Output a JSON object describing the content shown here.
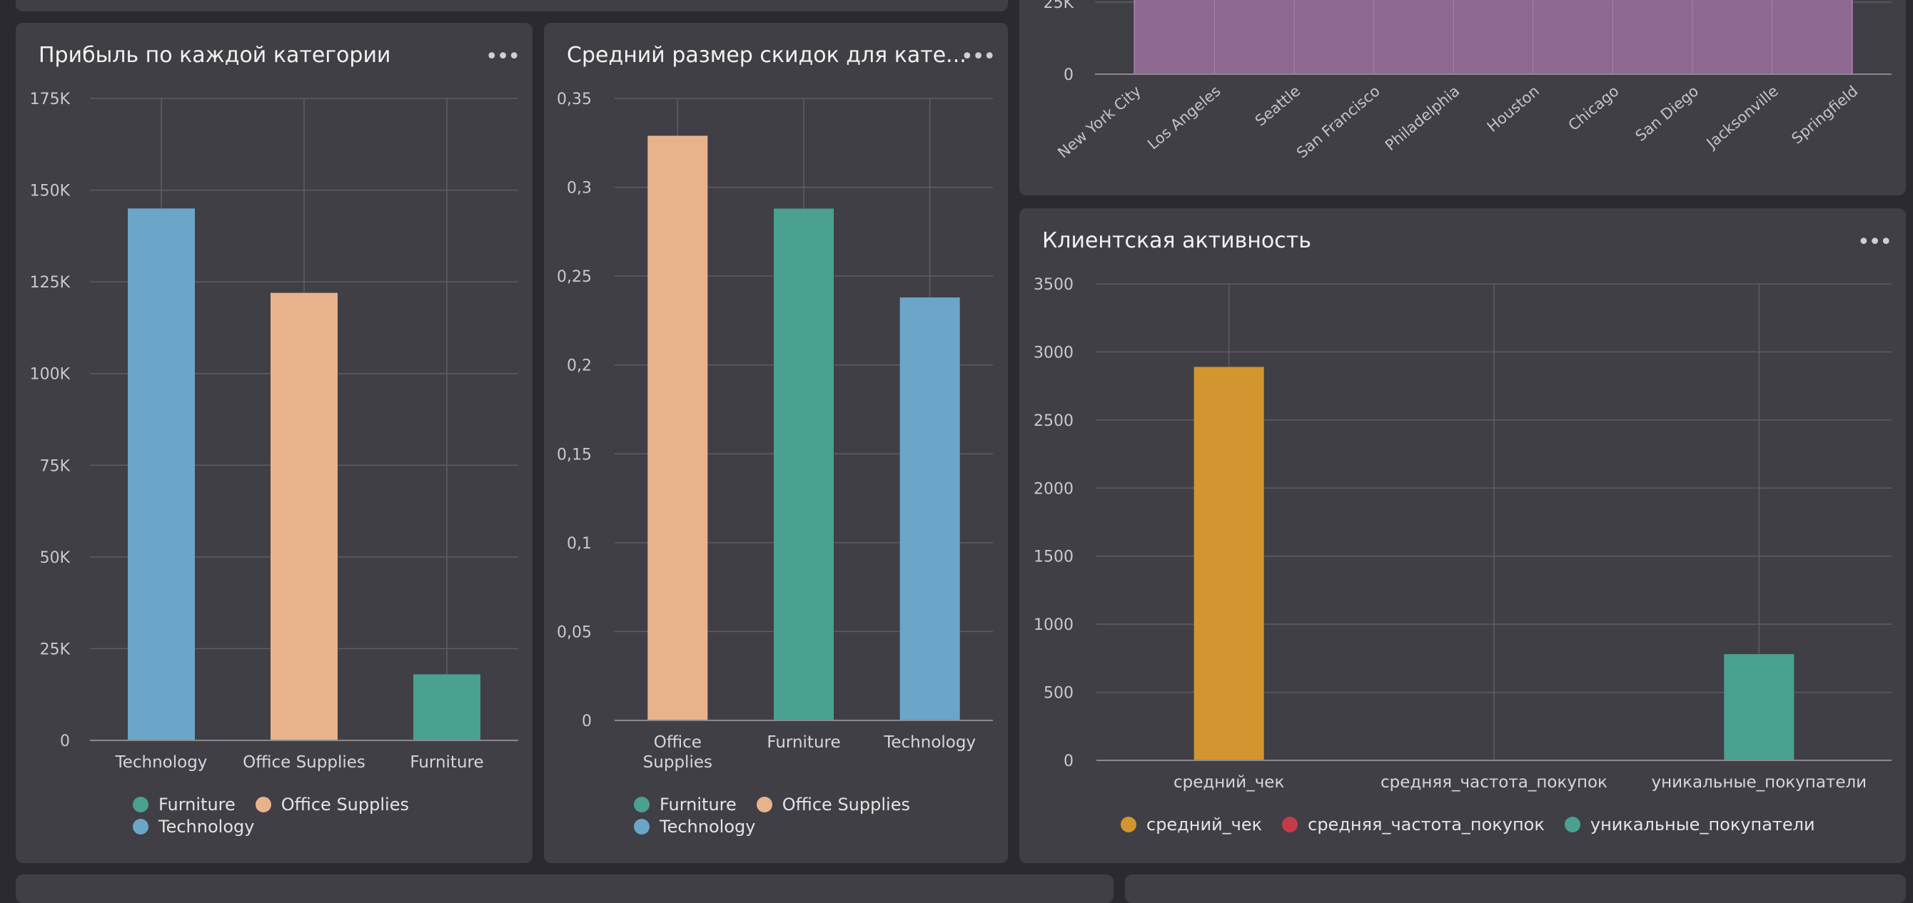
{
  "colors": {
    "blue": "#6ba6c9",
    "peach": "#e8b38b",
    "teal": "#4aa190",
    "orange": "#d1962f",
    "red": "#c43c4c",
    "purple": "#946b97"
  },
  "panel_profit": {
    "title": "Прибыль по каждой категории",
    "menu_icon": "more-horizontal-icon",
    "legend": [
      {
        "label": "Furniture",
        "color": "#4aa190"
      },
      {
        "label": "Office Supplies",
        "color": "#e8b38b"
      },
      {
        "label": "Technology",
        "color": "#6ba6c9"
      }
    ],
    "chart_data": {
      "type": "bar",
      "categories": [
        "Technology",
        "Office Supplies",
        "Furniture"
      ],
      "values": [
        145000,
        122000,
        18000
      ],
      "colors": [
        "#6ba6c9",
        "#e8b38b",
        "#4aa190"
      ],
      "ylim": [
        0,
        175000
      ],
      "yticks": [
        0,
        25000,
        50000,
        75000,
        100000,
        125000,
        150000,
        175000
      ],
      "ytick_labels": [
        "0",
        "25K",
        "50K",
        "75K",
        "100K",
        "125K",
        "150K",
        "175K"
      ],
      "grid": true
    }
  },
  "panel_discount": {
    "title": "Средний размер скидок для кате...",
    "menu_icon": "more-horizontal-icon",
    "legend": [
      {
        "label": "Furniture",
        "color": "#4aa190"
      },
      {
        "label": "Office Supplies",
        "color": "#e8b38b"
      },
      {
        "label": "Technology",
        "color": "#6ba6c9"
      }
    ],
    "chart_data": {
      "type": "bar",
      "categories": [
        [
          "Office",
          "Supplies"
        ],
        [
          "Furniture"
        ],
        [
          "Technology"
        ]
      ],
      "values": [
        0.329,
        0.288,
        0.238
      ],
      "colors": [
        "#e8b38b",
        "#4aa190",
        "#6ba6c9"
      ],
      "ylim": [
        0,
        0.35
      ],
      "yticks": [
        0,
        0.05,
        0.1,
        0.15,
        0.2,
        0.25,
        0.3,
        0.35
      ],
      "ytick_labels": [
        "0",
        "0,05",
        "0,1",
        "0,15",
        "0,2",
        "0,25",
        "0,3",
        "0,35"
      ],
      "grid": true
    }
  },
  "panel_cities": {
    "chart_data": {
      "type": "area",
      "categories": [
        "New York City",
        "Los Angeles",
        "Seattle",
        "San Francisco",
        "Philadelphia",
        "Houston",
        "Chicago",
        "San Diego",
        "Jacksonville",
        "Springfield"
      ],
      "yticks": [
        0,
        25000
      ],
      "ytick_labels": [
        "0",
        "25K"
      ],
      "color": "#946b97"
    }
  },
  "panel_activity": {
    "title": "Клиентская активность",
    "menu_icon": "more-horizontal-icon",
    "legend": [
      {
        "label": "средний_чек",
        "color": "#d1962f"
      },
      {
        "label": "средняя_частота_покупок",
        "color": "#c43c4c"
      },
      {
        "label": "уникальные_покупатели",
        "color": "#4aa190"
      }
    ],
    "chart_data": {
      "type": "bar",
      "categories": [
        "средний_чек",
        "средняя_частота_покупок",
        "уникальные_покупатели"
      ],
      "values": [
        2890,
        1.5,
        780
      ],
      "colors": [
        "#d1962f",
        "#c43c4c",
        "#4aa190"
      ],
      "ylim": [
        0,
        3500
      ],
      "yticks": [
        0,
        500,
        1000,
        1500,
        2000,
        2500,
        3000,
        3500
      ],
      "ytick_labels": [
        "0",
        "500",
        "1000",
        "1500",
        "2000",
        "2500",
        "3000",
        "3500"
      ],
      "grid": true
    }
  }
}
